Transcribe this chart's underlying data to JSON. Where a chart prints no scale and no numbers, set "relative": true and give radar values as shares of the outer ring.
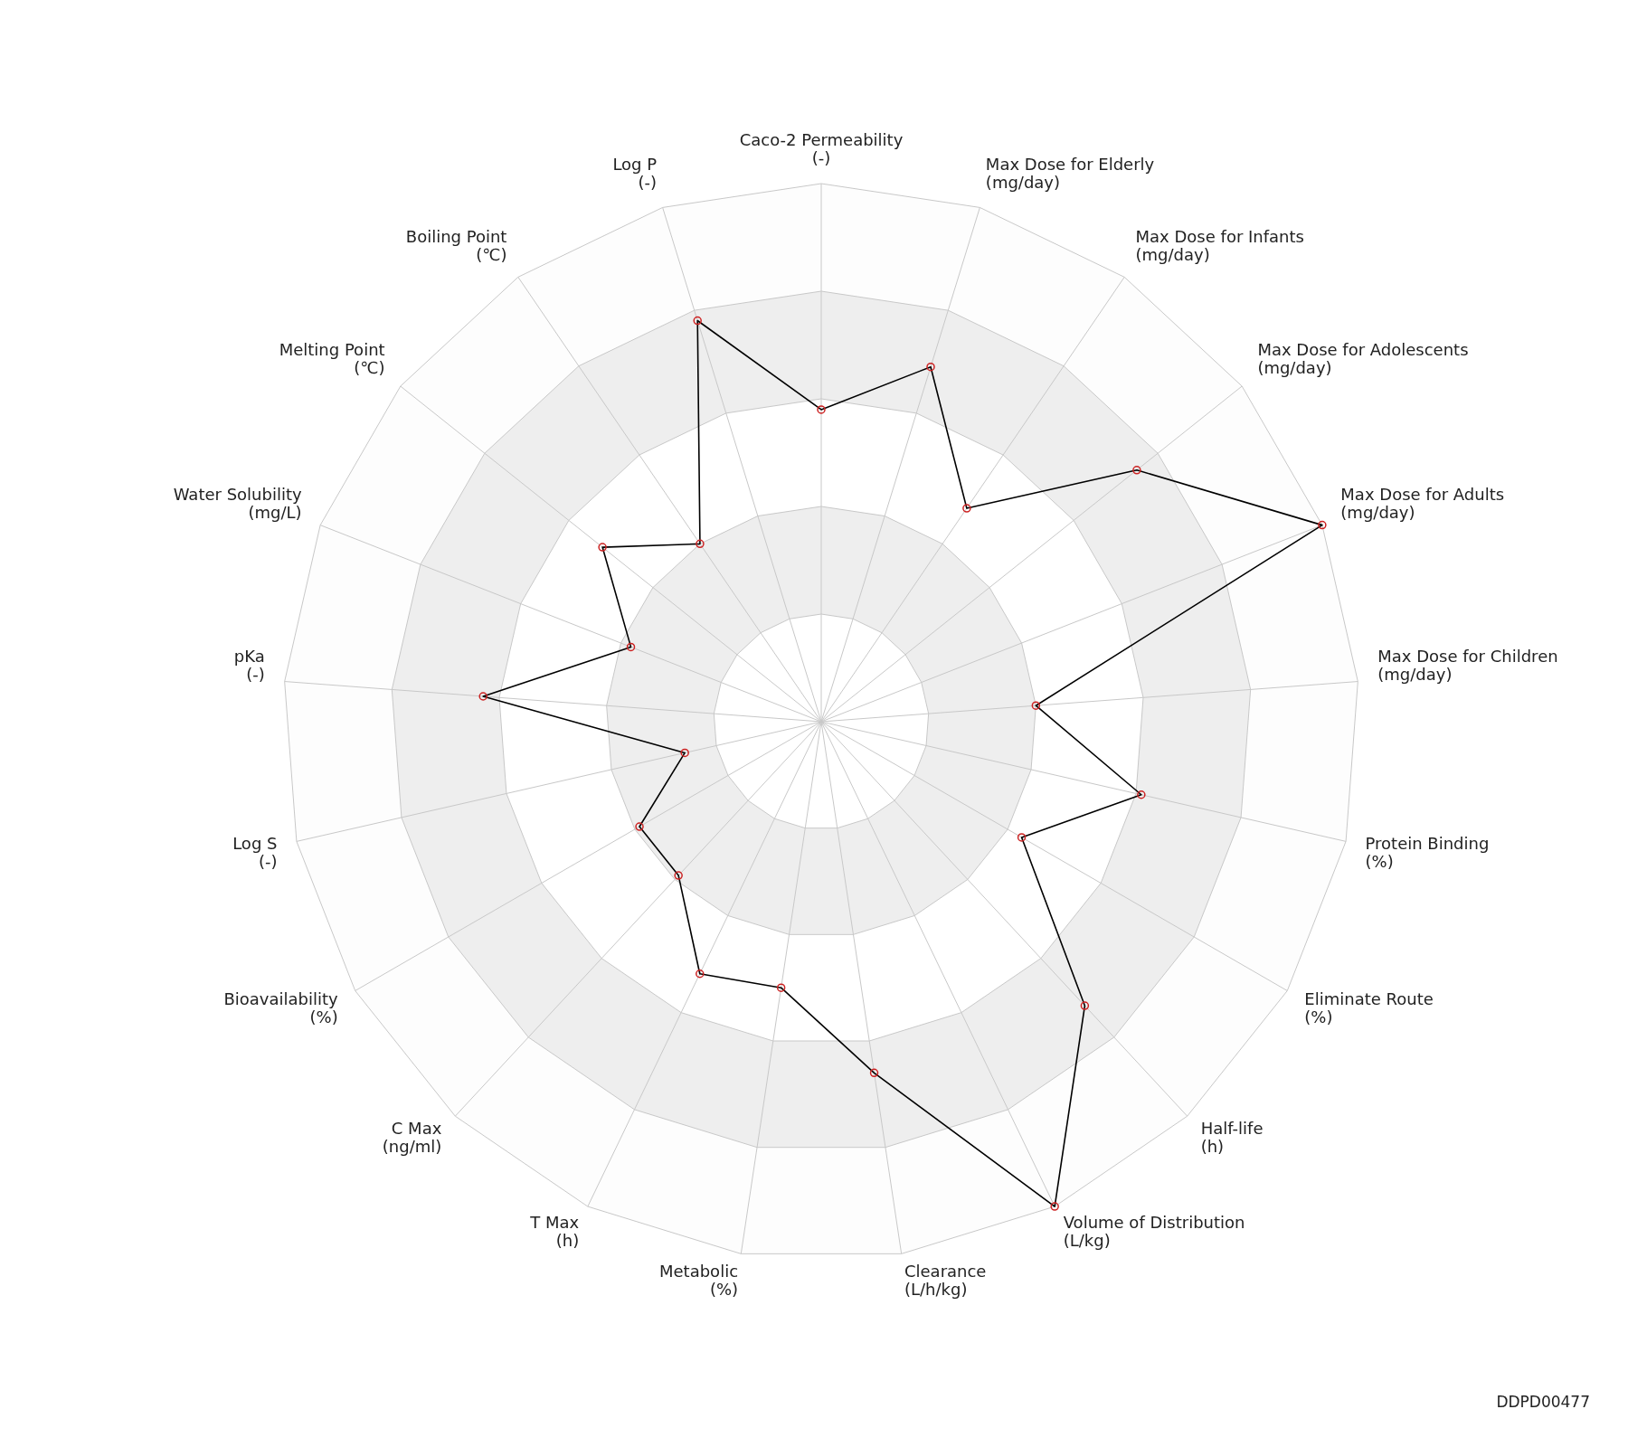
{
  "chart_data": {
    "type": "radar",
    "relative": true,
    "grid": true,
    "legend": false,
    "marker": "circle",
    "categories": [
      "Caco-2 Permeability\n(-)",
      "Max Dose for Elderly\n(mg/day)",
      "Max Dose for Infants\n(mg/day)",
      "Max Dose for Adolescents\n(mg/day)",
      "Max Dose for Adults\n(mg/day)",
      "Max Dose for Children\n(mg/day)",
      "Protein Binding\n(%)",
      "Eliminate Route\n(%)",
      "Half-life\n(h)",
      "Volume of Distribution\n(L/kg)",
      "Clearance\n(L/h/kg)",
      "Metabolic\n(%)",
      "T Max\n(h)",
      "C Max\n(ng/ml)",
      "Bioavailability\n(%)",
      "Log S\n(-)",
      "pKa\n(-)",
      "Water Solubility\n(mg/L)",
      "Melting Point\n(℃)",
      "Boiling Point\n(℃)",
      "Log P\n(-)"
    ],
    "series": [
      {
        "color": "#000000",
        "values": [
          0.58,
          0.69,
          0.48,
          0.75,
          1.0,
          0.4,
          0.61,
          0.43,
          0.72,
          1.0,
          0.66,
          0.5,
          0.52,
          0.39,
          0.39,
          0.26,
          0.63,
          0.38,
          0.52,
          0.4,
          0.78
        ]
      }
    ],
    "annotations": [
      "DDPD00477"
    ]
  }
}
